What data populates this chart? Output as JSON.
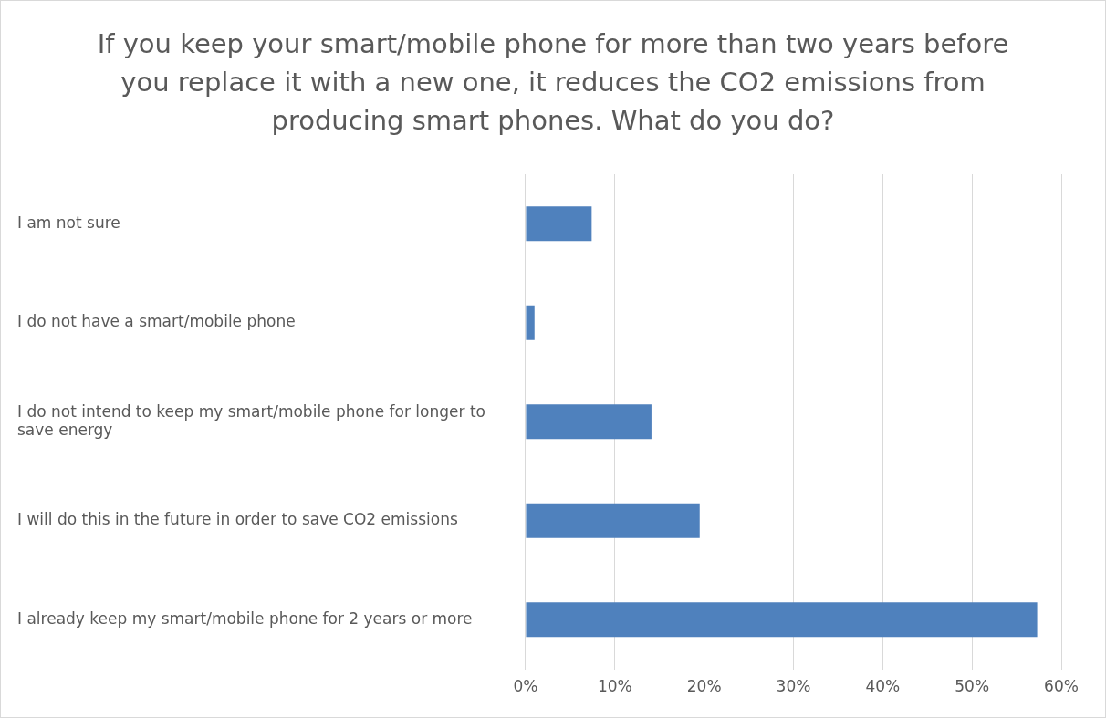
{
  "chart_data": {
    "type": "bar",
    "orientation": "horizontal",
    "title": "If you keep your smart/mobile phone for more than two years before you replace it with a new one, it reduces the CO2 emissions from producing smart phones. What do you do?",
    "categories": [
      "I am not sure",
      "I do not have a smart/mobile phone",
      "I do not intend to keep my smart/mobile phone for longer to save energy",
      "I will do this in the future in order to save CO2 emissions",
      "I already keep my smart/mobile phone for 2 years or more"
    ],
    "values": [
      7.4,
      1.0,
      14.1,
      19.5,
      57.3
    ],
    "color": "#4f81bd",
    "xlim": [
      0,
      60
    ],
    "xticks": [
      {
        "value": 0,
        "label": "0%"
      },
      {
        "value": 10,
        "label": "10%"
      },
      {
        "value": 20,
        "label": "20%"
      },
      {
        "value": 30,
        "label": "30%"
      },
      {
        "value": 40,
        "label": "40%"
      },
      {
        "value": 50,
        "label": "50%"
      },
      {
        "value": 60,
        "label": "60%"
      }
    ],
    "grid": "x",
    "legend": false
  }
}
